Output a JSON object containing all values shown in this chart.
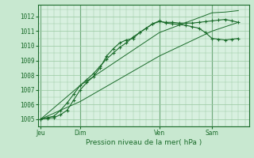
{
  "background_color": "#c8e8d0",
  "plot_bg_color": "#d8f0e0",
  "grid_color": "#98c8a0",
  "line_color": "#1a6b2a",
  "xlabel": "Pression niveau de la mer( hPa )",
  "ylim": [
    1004.5,
    1012.8
  ],
  "yticks": [
    1005,
    1006,
    1007,
    1008,
    1009,
    1010,
    1011,
    1012
  ],
  "day_labels": [
    "Jeu",
    "Dim",
    "Ven",
    "Sam"
  ],
  "day_positions": [
    0,
    3,
    9,
    13
  ],
  "xlim": [
    -0.2,
    15.8
  ],
  "series1_x": [
    0,
    0.5,
    1,
    1.5,
    2,
    2.5,
    3,
    3.5,
    4,
    4.5,
    5,
    5.5,
    6,
    6.5,
    7,
    7.5,
    8,
    8.5,
    9,
    9.5,
    10,
    10.5,
    11,
    11.5,
    12,
    12.5,
    13,
    13.5,
    14,
    14.5,
    15
  ],
  "series1_y": [
    1005.0,
    1005.05,
    1005.1,
    1005.3,
    1005.6,
    1006.3,
    1007.0,
    1007.5,
    1007.9,
    1008.5,
    1009.3,
    1009.8,
    1010.2,
    1010.4,
    1010.5,
    1010.9,
    1011.2,
    1011.5,
    1011.7,
    1011.55,
    1011.5,
    1011.45,
    1011.4,
    1011.3,
    1011.2,
    1010.9,
    1010.5,
    1010.45,
    1010.4,
    1010.45,
    1010.5
  ],
  "series2_x": [
    0,
    0.5,
    1,
    1.5,
    2,
    2.5,
    3,
    3.5,
    4,
    4.5,
    5,
    5.5,
    6,
    6.5,
    7,
    7.5,
    8,
    8.5,
    9,
    9.5,
    10,
    10.5,
    11,
    11.5,
    12,
    12.5,
    13,
    13.5,
    14,
    14.5,
    15
  ],
  "series2_y": [
    1005.0,
    1005.1,
    1005.2,
    1005.6,
    1006.1,
    1006.7,
    1007.3,
    1007.7,
    1008.1,
    1008.6,
    1009.1,
    1009.5,
    1009.9,
    1010.2,
    1010.6,
    1010.9,
    1011.2,
    1011.5,
    1011.65,
    1011.6,
    1011.6,
    1011.55,
    1011.55,
    1011.55,
    1011.6,
    1011.65,
    1011.7,
    1011.75,
    1011.8,
    1011.7,
    1011.6
  ],
  "series3_x": [
    0,
    3,
    9,
    13,
    15
  ],
  "series3_y": [
    1005.0,
    1006.2,
    1009.3,
    1011.0,
    1011.6
  ],
  "series4_x": [
    0,
    3,
    9,
    13,
    14,
    15
  ],
  "series4_y": [
    1005.0,
    1007.3,
    1010.9,
    1012.25,
    1012.3,
    1012.4
  ]
}
